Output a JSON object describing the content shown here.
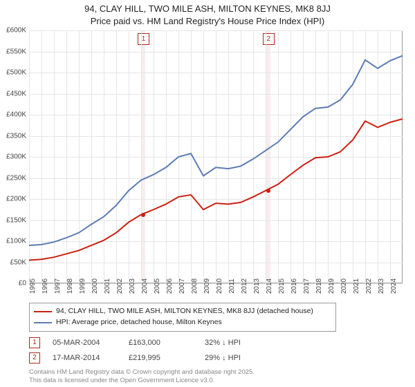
{
  "title_line1": "94, CLAY HILL, TWO MILE ASH, MILTON KEYNES, MK8 8JJ",
  "title_line2": "Price paid vs. HM Land Registry's House Price Index (HPI)",
  "chart": {
    "type": "line",
    "background_color": "#ffffff",
    "grid_color": "#e5e5e5",
    "border_color": "#999999",
    "x_years": [
      1995,
      1996,
      1997,
      1998,
      1999,
      2000,
      2001,
      2002,
      2003,
      2004,
      2005,
      2006,
      2007,
      2008,
      2009,
      2010,
      2011,
      2012,
      2013,
      2014,
      2015,
      2016,
      2017,
      2018,
      2019,
      2020,
      2021,
      2022,
      2023,
      2024
    ],
    "xlim": [
      1995,
      2025
    ],
    "ylim": [
      0,
      600000
    ],
    "ytick_step": 50000,
    "y_prefix": "£",
    "y_suffix": "K",
    "x_rotation_deg": -90,
    "tick_fontsize": 10,
    "tick_color": "#444444",
    "band_color": "#f3dede",
    "band_opacity": 0.55,
    "marker_border_color": "#b02418",
    "line_width": 2,
    "series": [
      {
        "name": "property",
        "label": "94, CLAY HILL, TWO MILE ASH, MILTON KEYNES, MK8 8JJ (detached house)",
        "color": "#cc1e10",
        "points": [
          [
            1995,
            55000
          ],
          [
            1996,
            57000
          ],
          [
            1997,
            62000
          ],
          [
            1998,
            70000
          ],
          [
            1999,
            78000
          ],
          [
            2000,
            90000
          ],
          [
            2001,
            102000
          ],
          [
            2002,
            120000
          ],
          [
            2003,
            145000
          ],
          [
            2004,
            163000
          ],
          [
            2005,
            175000
          ],
          [
            2006,
            188000
          ],
          [
            2007,
            205000
          ],
          [
            2008,
            210000
          ],
          [
            2009,
            175000
          ],
          [
            2010,
            190000
          ],
          [
            2011,
            188000
          ],
          [
            2012,
            192000
          ],
          [
            2013,
            205000
          ],
          [
            2014,
            219995
          ],
          [
            2015,
            235000
          ],
          [
            2016,
            258000
          ],
          [
            2017,
            280000
          ],
          [
            2018,
            298000
          ],
          [
            2019,
            300000
          ],
          [
            2020,
            312000
          ],
          [
            2021,
            340000
          ],
          [
            2022,
            385000
          ],
          [
            2023,
            370000
          ],
          [
            2024,
            382000
          ],
          [
            2025,
            390000
          ]
        ]
      },
      {
        "name": "hpi",
        "label": "HPI: Average price, detached house, Milton Keynes",
        "color": "#5a7bb5",
        "points": [
          [
            1995,
            90000
          ],
          [
            1996,
            92000
          ],
          [
            1997,
            98000
          ],
          [
            1998,
            108000
          ],
          [
            1999,
            120000
          ],
          [
            2000,
            140000
          ],
          [
            2001,
            158000
          ],
          [
            2002,
            185000
          ],
          [
            2003,
            220000
          ],
          [
            2004,
            245000
          ],
          [
            2005,
            258000
          ],
          [
            2006,
            275000
          ],
          [
            2007,
            300000
          ],
          [
            2008,
            308000
          ],
          [
            2009,
            255000
          ],
          [
            2010,
            275000
          ],
          [
            2011,
            272000
          ],
          [
            2012,
            278000
          ],
          [
            2013,
            295000
          ],
          [
            2014,
            315000
          ],
          [
            2015,
            335000
          ],
          [
            2016,
            365000
          ],
          [
            2017,
            395000
          ],
          [
            2018,
            415000
          ],
          [
            2019,
            418000
          ],
          [
            2020,
            435000
          ],
          [
            2021,
            472000
          ],
          [
            2022,
            530000
          ],
          [
            2023,
            510000
          ],
          [
            2024,
            528000
          ],
          [
            2025,
            540000
          ]
        ]
      }
    ],
    "event_markers": [
      {
        "idx": "1",
        "x": 2004.17,
        "y": 163000,
        "band_x": 2004.17
      },
      {
        "idx": "2",
        "x": 2014.21,
        "y": 219995,
        "band_x": 2014.21
      }
    ]
  },
  "legend": {
    "rows": [
      {
        "color": "#cc1e10",
        "label": "94, CLAY HILL, TWO MILE ASH, MILTON KEYNES, MK8 8JJ (detached house)"
      },
      {
        "color": "#5a7bb5",
        "label": "HPI: Average price, detached house, Milton Keynes"
      }
    ]
  },
  "sale_events": [
    {
      "idx": "1",
      "date": "05-MAR-2004",
      "price": "£163,000",
      "delta": "32% ↓ HPI"
    },
    {
      "idx": "2",
      "date": "17-MAR-2014",
      "price": "£219,995",
      "delta": "29% ↓ HPI"
    }
  ],
  "footer_line1": "Contains HM Land Registry data © Crown copyright and database right 2025.",
  "footer_line2": "This data is licensed under the Open Government Licence v3.0."
}
